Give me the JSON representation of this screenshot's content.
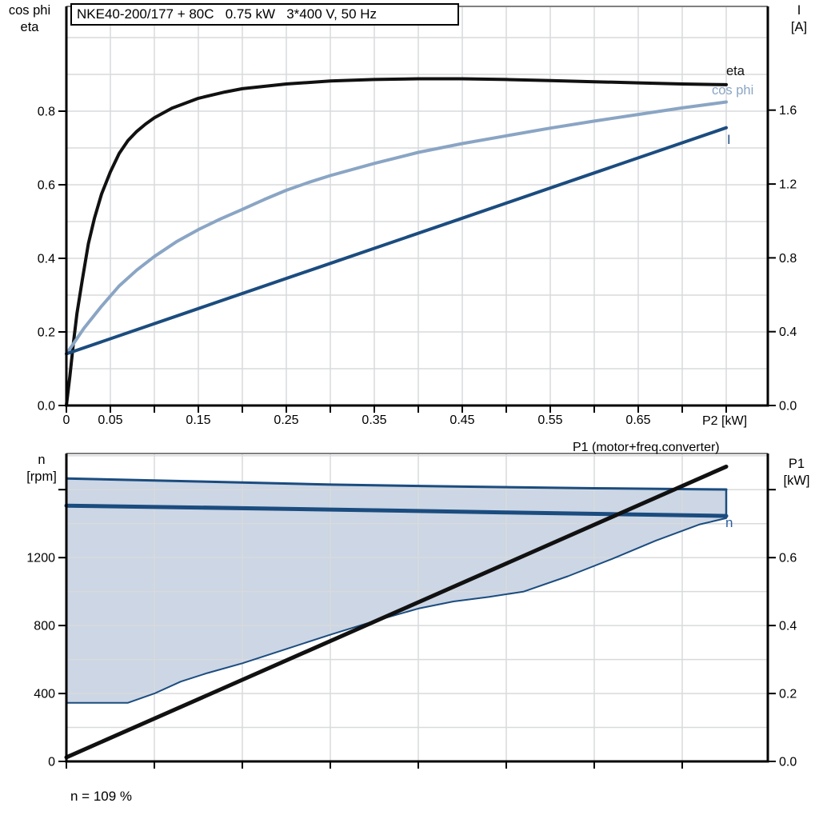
{
  "colors": {
    "black_line": "#111111",
    "cos_phi": "#8aa5c4",
    "dark_blue": "#1b4c7f",
    "area_fill": "#ccd6e4",
    "grid": "#d8dadc",
    "axis": "#000000",
    "frame_top": "#808080",
    "n_label": "#2a5f9e",
    "background": "#ffffff"
  },
  "chart_data": [
    {
      "type": "line",
      "title": "NKE40-200/177 + 80C   0.75 kW   3*400 V, 50 Hz",
      "xlabel": "P2 [kW]",
      "ylabel_left": [
        "cos phi",
        "eta"
      ],
      "ylabel_right": [
        "I",
        "[A]"
      ],
      "xlim": [
        0,
        0.7973
      ],
      "ylim_left": [
        0,
        1.0848
      ],
      "ylim_right": [
        0,
        2.1622
      ],
      "grid": true,
      "x_grid_step": 0.05,
      "y_grid_step_left": 0.1,
      "x_minor_tick_step": 0.05,
      "x_ticks": {
        "values": [
          0,
          0.05,
          0.15,
          0.25,
          0.35,
          0.45,
          0.55,
          0.65
        ],
        "labels": [
          "0",
          "0.05",
          "0.15",
          "0.25",
          "0.35",
          "0.45",
          "0.55",
          "0.65"
        ]
      },
      "y_ticks_left": {
        "values": [
          0,
          0.2,
          0.4,
          0.6,
          0.8
        ],
        "labels": [
          "0.0",
          "0.2",
          "0.4",
          "0.6",
          "0.8"
        ]
      },
      "y_ticks_right": {
        "values": [
          0,
          0.4,
          0.8,
          1.2,
          1.6
        ],
        "labels": [
          "0.0",
          "0.4",
          "0.8",
          "1.2",
          "1.6"
        ]
      },
      "legend_position": "end-of-curve",
      "series": [
        {
          "name": "eta",
          "label": "eta",
          "axis": "left",
          "color": "black_line",
          "width": 4,
          "x": [
            0,
            0.004,
            0.008,
            0.012,
            0.018,
            0.025,
            0.032,
            0.04,
            0.05,
            0.06,
            0.07,
            0.08,
            0.09,
            0.1,
            0.12,
            0.15,
            0.18,
            0.2,
            0.25,
            0.3,
            0.35,
            0.4,
            0.45,
            0.5,
            0.55,
            0.6,
            0.65,
            0.7,
            0.75
          ],
          "y": [
            0,
            0.08,
            0.17,
            0.25,
            0.34,
            0.44,
            0.51,
            0.575,
            0.635,
            0.685,
            0.72,
            0.745,
            0.765,
            0.782,
            0.808,
            0.835,
            0.852,
            0.861,
            0.874,
            0.882,
            0.886,
            0.888,
            0.888,
            0.886,
            0.883,
            0.88,
            0.877,
            0.874,
            0.872
          ]
        },
        {
          "name": "cos phi",
          "label": "cos phi",
          "axis": "left",
          "color": "cos_phi",
          "width": 4,
          "x": [
            0,
            0.02,
            0.04,
            0.06,
            0.08,
            0.1,
            0.125,
            0.15,
            0.175,
            0.2,
            0.225,
            0.25,
            0.275,
            0.3,
            0.35,
            0.4,
            0.45,
            0.5,
            0.55,
            0.6,
            0.65,
            0.7,
            0.75
          ],
          "y": [
            0.14,
            0.21,
            0.27,
            0.325,
            0.368,
            0.405,
            0.445,
            0.478,
            0.507,
            0.533,
            0.56,
            0.585,
            0.606,
            0.625,
            0.658,
            0.688,
            0.712,
            0.733,
            0.754,
            0.773,
            0.791,
            0.809,
            0.825
          ]
        },
        {
          "name": "I",
          "label": "I",
          "axis": "right",
          "color": "dark_blue",
          "width": 4,
          "x": [
            0,
            0.15,
            0.3,
            0.45,
            0.6,
            0.75
          ],
          "y": [
            0.28,
            0.525,
            0.77,
            1.015,
            1.26,
            1.505
          ]
        }
      ]
    },
    {
      "type": "line+area",
      "title": "",
      "xlabel": "",
      "ylabel_left": [
        "n",
        "[rpm]"
      ],
      "ylabel_right": [
        "P1",
        "[kW]"
      ],
      "annotation": "n = 109 %",
      "xlim": [
        0,
        0.7973
      ],
      "ylim_left": [
        0,
        1813
      ],
      "ylim_right": [
        0,
        0.9065
      ],
      "grid": true,
      "x_grid_step": 0.1,
      "y_grid_step_left": 200,
      "x_minor_tick_step": 0.1,
      "x_ticks": {
        "values": [],
        "labels": []
      },
      "y_ticks_left": {
        "values": [
          0,
          400,
          800,
          1200
        ],
        "labels": [
          "0",
          "400",
          "800",
          "1200"
        ],
        "unlabeled": [
          1600
        ]
      },
      "y_ticks_right": {
        "values": [
          0,
          0.2,
          0.4,
          0.6
        ],
        "labels": [
          "0.0",
          "0.2",
          "0.4",
          "0.6"
        ],
        "unlabeled": [
          0.8
        ]
      },
      "operating_area": {
        "name": "speed-operating-range",
        "fill": "area_fill",
        "border": "dark_blue",
        "upper_rpm": {
          "x": [
            0,
            0.15,
            0.3,
            0.45,
            0.6,
            0.75
          ],
          "y": [
            1666,
            1648,
            1630,
            1618,
            1608,
            1601
          ]
        },
        "lower_rpm": {
          "x": [
            0,
            0.07,
            0.1,
            0.13,
            0.16,
            0.2,
            0.25,
            0.3,
            0.35,
            0.4,
            0.44,
            0.48,
            0.52,
            0.57,
            0.62,
            0.67,
            0.72,
            0.75
          ],
          "y": [
            345,
            345,
            400,
            470,
            520,
            578,
            662,
            746,
            826,
            900,
            942,
            968,
            1000,
            1090,
            1192,
            1300,
            1396,
            1432
          ]
        }
      },
      "series": [
        {
          "name": "n",
          "label": "n",
          "axis": "left",
          "color": "dark_blue",
          "width": 5,
          "x": [
            0,
            0.25,
            0.5,
            0.75
          ],
          "y": [
            1506,
            1487,
            1466,
            1445
          ]
        },
        {
          "name": "P1",
          "label": "P1 (motor+freq.converter)",
          "axis": "right",
          "color": "black_line",
          "width": 5,
          "x": [
            0,
            0.75
          ],
          "y": [
            0.012,
            0.868
          ]
        }
      ]
    }
  ]
}
